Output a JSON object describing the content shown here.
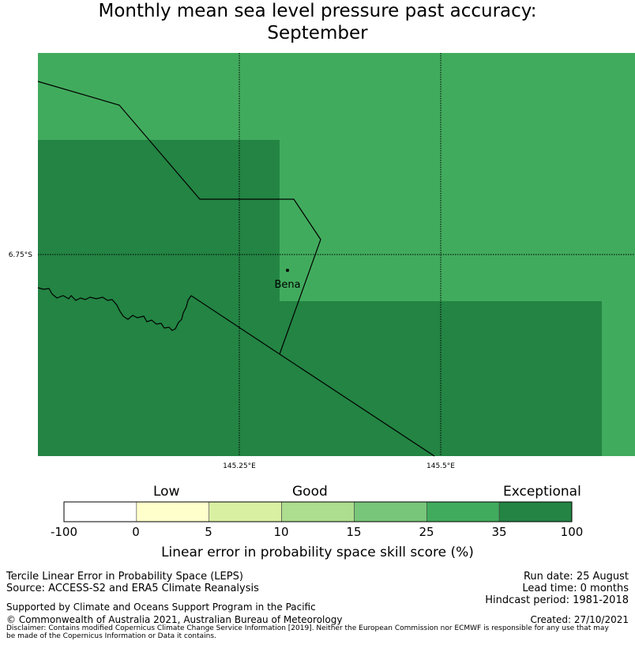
{
  "title_line1": "Monthly mean sea level pressure past accuracy:",
  "title_line2": "September",
  "map": {
    "background_color": "#41ab5d",
    "dark_color": "#238443",
    "lat_label": "6.75°S",
    "lon_labels": [
      "145.25°E",
      "145.5°E"
    ],
    "place_name": "Bena"
  },
  "colorbar": {
    "categories": [
      "Low",
      "Good",
      "Exceptional"
    ],
    "ticks": [
      "-100",
      "0",
      "5",
      "10",
      "15",
      "25",
      "35",
      "100"
    ],
    "colors": [
      "#ffffff",
      "#ffffcc",
      "#d9f0a3",
      "#addd8e",
      "#78c679",
      "#41ab5d",
      "#238443"
    ],
    "label": "Linear error in probability space skill score (%)"
  },
  "footer": {
    "method": "Tercile Linear Error in Probability Space (LEPS)",
    "source": "Source: ACCESS-S2 and ERA5 Climate Reanalysis",
    "run_date": "Run date: 25 August",
    "lead_time": "Lead time: 0 months",
    "hindcast": "Hindcast period: 1981-2018",
    "supported": "Supported by Climate and Oceans Support Program in the Pacific",
    "copyright": "© Commonwealth of Australia 2021, Australian Bureau of Meteorology",
    "created": "Created: 27/10/2021",
    "disclaimer_1": "Disclaimer: Contains modified Copernicus Climate Change Service Information [2019]. Neither the European Commission nor ECMWF is responsible for any use that may",
    "disclaimer_2": "be made of the Copernicus Information or Data it contains."
  }
}
